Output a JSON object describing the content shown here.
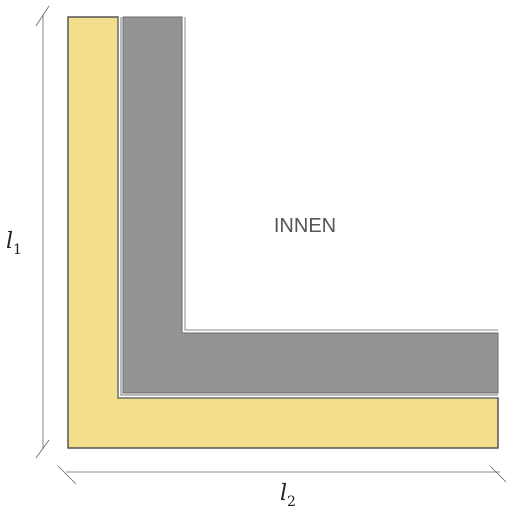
{
  "diagram": {
    "label_inside": "INNEN",
    "dimension_l1": {
      "symbol": "l",
      "subscript": "1"
    },
    "dimension_l2": {
      "symbol": "l",
      "subscript": "2"
    },
    "colors": {
      "insulation": "#f2de8c",
      "wall": "#949494",
      "edge": "#6a6a6a",
      "dimension_line": "#666666",
      "text": "#555555"
    }
  }
}
